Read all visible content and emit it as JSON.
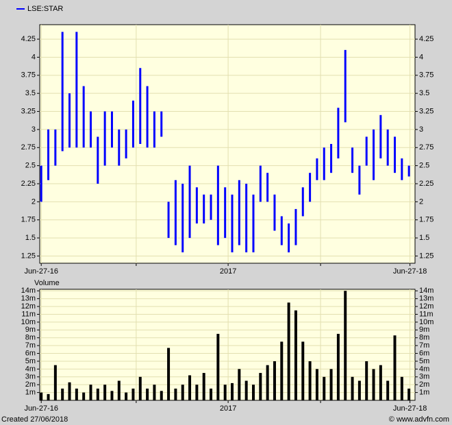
{
  "chart_data": [
    {
      "type": "hilo",
      "x": [
        "2016-06-27",
        "2016-07-11",
        "2016-07-25",
        "2016-08-08",
        "2016-08-22",
        "2016-09-05",
        "2016-09-19",
        "2016-10-03",
        "2016-10-17",
        "2016-10-31",
        "2016-11-14",
        "2016-11-28",
        "2016-12-12",
        "2016-12-26",
        "2017-01-09",
        "2017-01-23",
        "2017-02-06",
        "2017-02-20",
        "2017-03-06",
        "2017-03-20",
        "2017-04-03",
        "2017-04-17",
        "2017-05-01",
        "2017-05-15",
        "2017-05-29",
        "2017-06-12",
        "2017-06-26",
        "2017-07-10",
        "2017-07-24",
        "2017-08-07",
        "2017-08-21",
        "2017-09-04",
        "2017-09-18",
        "2017-10-02",
        "2017-10-16",
        "2017-10-30",
        "2017-11-13",
        "2017-11-27",
        "2017-12-11",
        "2017-12-25",
        "2018-01-08",
        "2018-01-22",
        "2018-02-05",
        "2018-02-19",
        "2018-03-05",
        "2018-03-19",
        "2018-04-02",
        "2018-04-16",
        "2018-04-30",
        "2018-05-14",
        "2018-05-28",
        "2018-06-11",
        "2018-06-25"
      ],
      "series": [
        {
          "name": "LSE:STAR",
          "color": "#0000ff",
          "high": [
            2.5,
            3.0,
            3.0,
            4.35,
            3.5,
            4.35,
            3.6,
            3.25,
            2.9,
            3.25,
            3.25,
            3.0,
            3.0,
            3.4,
            3.85,
            3.6,
            3.25,
            3.25,
            2.0,
            2.3,
            2.25,
            2.5,
            2.2,
            2.1,
            2.1,
            2.5,
            2.2,
            2.1,
            2.3,
            2.25,
            2.1,
            2.5,
            2.4,
            2.1,
            1.8,
            1.7,
            1.9,
            2.2,
            2.4,
            2.6,
            2.75,
            2.8,
            3.3,
            4.1,
            2.75,
            2.5,
            2.9,
            3.0,
            3.2,
            3.0,
            2.9,
            2.6,
            2.5
          ],
          "low": [
            2.0,
            2.3,
            2.5,
            2.7,
            2.75,
            2.75,
            2.75,
            2.75,
            2.25,
            2.5,
            2.75,
            2.5,
            2.6,
            2.75,
            2.8,
            2.75,
            2.75,
            2.9,
            1.5,
            1.4,
            1.3,
            1.5,
            1.7,
            1.7,
            1.75,
            1.4,
            1.5,
            1.3,
            1.4,
            1.3,
            1.3,
            2.0,
            2.0,
            1.6,
            1.4,
            1.3,
            1.4,
            1.8,
            2.0,
            2.3,
            2.3,
            2.4,
            2.6,
            3.1,
            2.4,
            2.1,
            2.5,
            2.3,
            2.6,
            2.5,
            2.4,
            2.3,
            2.35
          ]
        }
      ],
      "xlim": [
        "2016-06-24",
        "2018-07-07"
      ],
      "xticks": [
        {
          "value": "2016-06-27",
          "label": "Jun-27-16"
        },
        {
          "value": "2017-01-01"
        },
        {
          "value": "2017-07-02",
          "label": "2017"
        },
        {
          "value": "2018-01-01"
        },
        {
          "value": "2018-06-27",
          "label": "Jun-27-18"
        }
      ],
      "ylim": [
        1.15,
        4.45
      ],
      "yticks": [
        1.25,
        1.5,
        1.75,
        2,
        2.25,
        2.5,
        2.75,
        3,
        3.25,
        3.5,
        3.75,
        4,
        4.25
      ],
      "grid": true
    },
    {
      "type": "bar",
      "title": "Volume",
      "color": "#000000",
      "x": [
        "2016-06-27",
        "2016-07-11",
        "2016-07-25",
        "2016-08-08",
        "2016-08-22",
        "2016-09-05",
        "2016-09-19",
        "2016-10-03",
        "2016-10-17",
        "2016-10-31",
        "2016-11-14",
        "2016-11-28",
        "2016-12-12",
        "2016-12-26",
        "2017-01-09",
        "2017-01-23",
        "2017-02-06",
        "2017-02-20",
        "2017-03-06",
        "2017-03-20",
        "2017-04-03",
        "2017-04-17",
        "2017-05-01",
        "2017-05-15",
        "2017-05-29",
        "2017-06-12",
        "2017-06-26",
        "2017-07-10",
        "2017-07-24",
        "2017-08-07",
        "2017-08-21",
        "2017-09-04",
        "2017-09-18",
        "2017-10-02",
        "2017-10-16",
        "2017-10-30",
        "2017-11-13",
        "2017-11-27",
        "2017-12-11",
        "2017-12-25",
        "2018-01-08",
        "2018-01-22",
        "2018-02-05",
        "2018-02-19",
        "2018-03-05",
        "2018-03-19",
        "2018-04-02",
        "2018-04-16",
        "2018-04-30",
        "2018-05-14",
        "2018-05-28",
        "2018-06-11",
        "2018-06-25"
      ],
      "values": [
        1000000,
        800000,
        4500000,
        1500000,
        2300000,
        1500000,
        1000000,
        2000000,
        1500000,
        2000000,
        1200000,
        2500000,
        1000000,
        1500000,
        3000000,
        1500000,
        2000000,
        1200000,
        6700000,
        1500000,
        2000000,
        3200000,
        2000000,
        3500000,
        1500000,
        8500000,
        2000000,
        2200000,
        4000000,
        2500000,
        2000000,
        3500000,
        4500000,
        5000000,
        7500000,
        12500000,
        11500000,
        7500000,
        5000000,
        4000000,
        3000000,
        4000000,
        8500000,
        14000000,
        3000000,
        2500000,
        5000000,
        4000000,
        4500000,
        2500000,
        8300000,
        3000000,
        1500000
      ],
      "xlim": [
        "2016-06-24",
        "2018-07-07"
      ],
      "xticks": [
        {
          "value": "2016-06-27",
          "label": "Jun-27-16"
        },
        {
          "value": "2017-01-01"
        },
        {
          "value": "2017-07-02",
          "label": "2017"
        },
        {
          "value": "2018-01-01"
        },
        {
          "value": "2018-06-27",
          "label": "Jun-27-18"
        }
      ],
      "ylim": [
        0,
        14200000
      ],
      "yticks": [
        {
          "value": 1000000,
          "label": "1m"
        },
        {
          "value": 2000000,
          "label": "2m"
        },
        {
          "value": 3000000,
          "label": "3m"
        },
        {
          "value": 4000000,
          "label": "4m"
        },
        {
          "value": 5000000,
          "label": "5m"
        },
        {
          "value": 6000000,
          "label": "6m"
        },
        {
          "value": 7000000,
          "label": "7m"
        },
        {
          "value": 8000000,
          "label": "8m"
        },
        {
          "value": 9000000,
          "label": "9m"
        },
        {
          "value": 10000000,
          "label": "10m"
        },
        {
          "value": 11000000,
          "label": "11m"
        },
        {
          "value": 12000000,
          "label": "12m"
        },
        {
          "value": 13000000,
          "label": "13m"
        },
        {
          "value": 14000000,
          "label": "14m"
        }
      ],
      "grid": true
    }
  ],
  "footer": {
    "created": "Created 27/06/2018",
    "source": "© www.advfn.com"
  }
}
